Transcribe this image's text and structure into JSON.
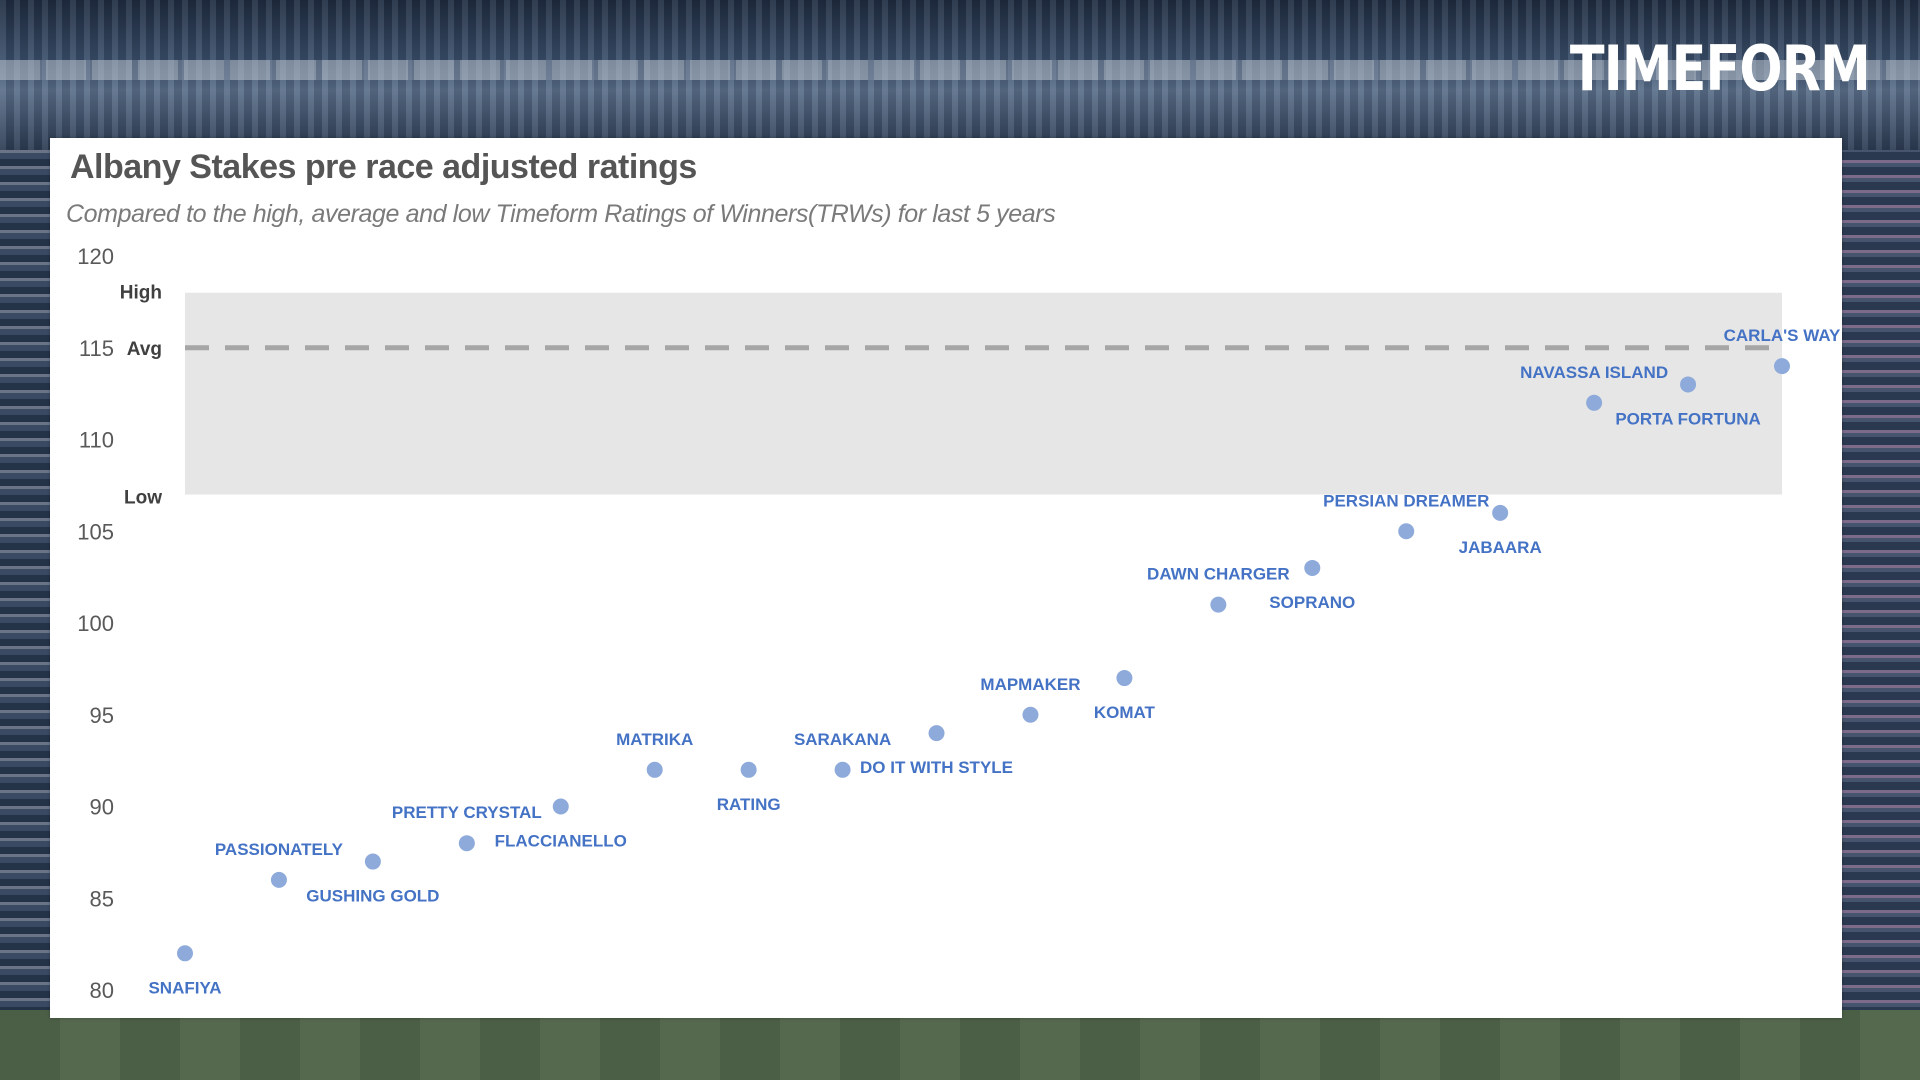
{
  "brand": {
    "logo_text": "TIMEFORM"
  },
  "chart_data": {
    "type": "scatter",
    "title": "Albany Stakes pre race adjusted ratings",
    "subtitle": "Compared to the high, average and low Timeform Ratings of Winners(TRWs) for last 5 years",
    "ylim": [
      80,
      120
    ],
    "yticks": [
      80,
      85,
      90,
      95,
      100,
      105,
      110,
      115,
      120
    ],
    "grid": false,
    "legend": "none",
    "point_color": "#8eaadb",
    "label_color": "#4472c4",
    "band": {
      "high": 118,
      "avg": 115,
      "low": 107,
      "high_label": "High",
      "avg_label": "Avg",
      "low_label": "Low",
      "fill": "#e6e6e6",
      "avg_line_color": "#a6a6a6"
    },
    "points": [
      {
        "label": "SNAFIYA",
        "x": 1,
        "y": 82,
        "label_pos": "below"
      },
      {
        "label": "PASSIONATELY",
        "x": 2,
        "y": 86,
        "label_pos": "above"
      },
      {
        "label": "GUSHING GOLD",
        "x": 3,
        "y": 87,
        "label_pos": "below"
      },
      {
        "label": "PRETTY CRYSTAL",
        "x": 4,
        "y": 88,
        "label_pos": "above"
      },
      {
        "label": "FLACCIANELLO",
        "x": 5,
        "y": 90,
        "label_pos": "below"
      },
      {
        "label": "MATRIKA",
        "x": 6,
        "y": 92,
        "label_pos": "above"
      },
      {
        "label": "RATING",
        "x": 7,
        "y": 92,
        "label_pos": "below"
      },
      {
        "label": "SARAKANA",
        "x": 8,
        "y": 92,
        "label_pos": "above"
      },
      {
        "label": "DO IT WITH STYLE",
        "x": 9,
        "y": 94,
        "label_pos": "below"
      },
      {
        "label": "MAPMAKER",
        "x": 10,
        "y": 95,
        "label_pos": "above"
      },
      {
        "label": "KOMAT",
        "x": 11,
        "y": 97,
        "label_pos": "below"
      },
      {
        "label": "DAWN CHARGER",
        "x": 12,
        "y": 101,
        "label_pos": "above"
      },
      {
        "label": "SOPRANO",
        "x": 13,
        "y": 103,
        "label_pos": "below"
      },
      {
        "label": "PERSIAN DREAMER",
        "x": 14,
        "y": 105,
        "label_pos": "above"
      },
      {
        "label": "JABAARA",
        "x": 15,
        "y": 106,
        "label_pos": "below"
      },
      {
        "label": "NAVASSA ISLAND",
        "x": 16,
        "y": 112,
        "label_pos": "above"
      },
      {
        "label": "PORTA FORTUNA",
        "x": 17,
        "y": 113,
        "label_pos": "below"
      },
      {
        "label": "CARLA'S WAY",
        "x": 18,
        "y": 114,
        "label_pos": "above"
      }
    ]
  }
}
